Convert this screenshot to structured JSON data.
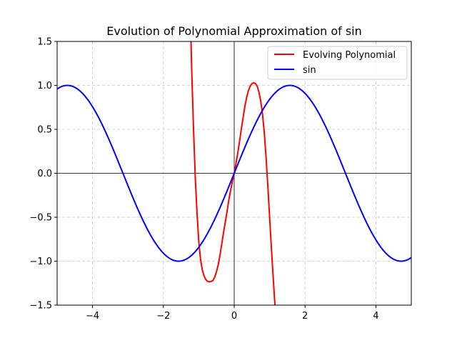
{
  "chart_data": {
    "type": "line",
    "title": "Evolution of Polynomial Approximation of sin",
    "xlabel": "",
    "ylabel": "",
    "xlim": [
      -5,
      5
    ],
    "ylim": [
      -1.5,
      1.5
    ],
    "grid": true,
    "grid_style": "dashed",
    "legend_position": "top-right",
    "x_ticks": [
      -4,
      -2,
      0,
      2,
      4
    ],
    "x_tick_labels": [
      "−4",
      "−2",
      "0",
      "2",
      "4"
    ],
    "y_ticks": [
      -1.5,
      -1.0,
      -0.5,
      0.0,
      0.5,
      1.0,
      1.5
    ],
    "y_tick_labels": [
      "−1.5",
      "−1.0",
      "−0.5",
      "0.0",
      "0.5",
      "1.0",
      "1.5"
    ],
    "reference_lines": {
      "x": 0,
      "y": 0
    },
    "series": [
      {
        "name": "Evolving Polynomial",
        "color": "#ff0000",
        "points": [
          [
            -1.22,
            1.5
          ],
          [
            -1.2,
            1.18
          ],
          [
            -1.15,
            0.52
          ],
          [
            -1.1,
            -0.04
          ],
          [
            -1.05,
            -0.45
          ],
          [
            -1.0,
            -0.78
          ],
          [
            -0.95,
            -0.98
          ],
          [
            -0.9,
            -1.1
          ],
          [
            -0.85,
            -1.17
          ],
          [
            -0.8,
            -1.21
          ],
          [
            -0.75,
            -1.23
          ],
          [
            -0.7,
            -1.235
          ],
          [
            -0.65,
            -1.23
          ],
          [
            -0.6,
            -1.22
          ],
          [
            -0.55,
            -1.18
          ],
          [
            -0.5,
            -1.12
          ],
          [
            -0.45,
            -1.04
          ],
          [
            -0.4,
            -0.93
          ],
          [
            -0.35,
            -0.8
          ],
          [
            -0.3,
            -0.67
          ],
          [
            -0.25,
            -0.55
          ],
          [
            -0.2,
            -0.43
          ],
          [
            -0.15,
            -0.3
          ],
          [
            -0.1,
            -0.19
          ],
          [
            -0.05,
            -0.09
          ],
          [
            0.0,
            0.0
          ],
          [
            0.05,
            0.11
          ],
          [
            0.1,
            0.23
          ],
          [
            0.15,
            0.36
          ],
          [
            0.2,
            0.5
          ],
          [
            0.25,
            0.63
          ],
          [
            0.3,
            0.76
          ],
          [
            0.35,
            0.86
          ],
          [
            0.4,
            0.94
          ],
          [
            0.45,
            0.99
          ],
          [
            0.5,
            1.02
          ],
          [
            0.55,
            1.03
          ],
          [
            0.6,
            1.02
          ],
          [
            0.65,
            0.99
          ],
          [
            0.7,
            0.92
          ],
          [
            0.75,
            0.82
          ],
          [
            0.8,
            0.67
          ],
          [
            0.85,
            0.46
          ],
          [
            0.9,
            0.18
          ],
          [
            0.95,
            -0.15
          ],
          [
            1.0,
            -0.5
          ],
          [
            1.05,
            -0.85
          ],
          [
            1.1,
            -1.18
          ],
          [
            1.15,
            -1.5
          ]
        ]
      },
      {
        "name": "sin",
        "color": "#0000ff",
        "function": "sin",
        "x_range": [
          -5,
          5
        ]
      }
    ]
  }
}
